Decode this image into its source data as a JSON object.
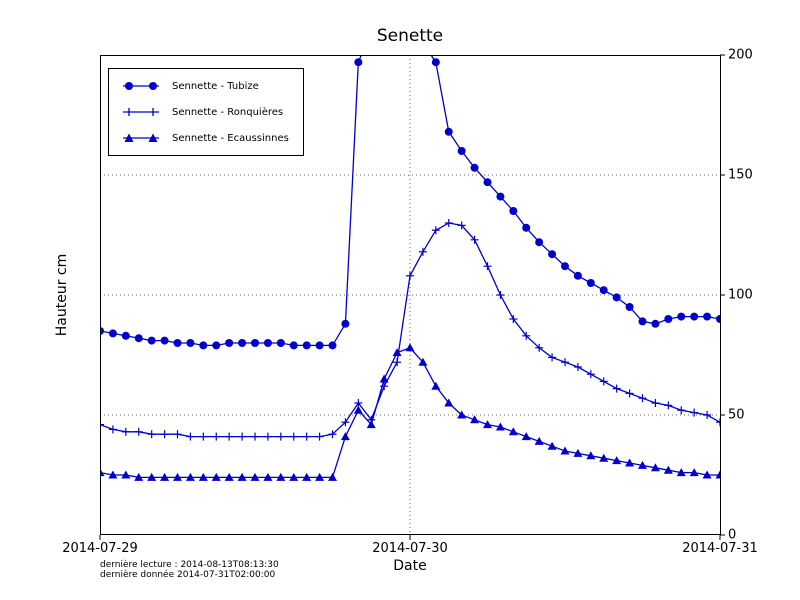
{
  "chart_data": {
    "type": "line",
    "title": "Senette",
    "xlabel": "Date",
    "ylabel": "Hauteur cm",
    "color": "#0000cc",
    "x_unit": "hours since 2014-07-29 00:00",
    "x_range": [
      0,
      48
    ],
    "x_tick_hours": [
      0,
      24,
      48
    ],
    "x_tick_labels": [
      "2014-07-29",
      "2014-07-30",
      "2014-07-31"
    ],
    "y_range": [
      0,
      200
    ],
    "y_ticks": [
      0,
      50,
      100,
      150,
      200
    ],
    "grid_y_values": [
      50,
      100,
      150
    ],
    "grid_x_hours": [
      24
    ],
    "grid_style": "dotted",
    "legend_position": "top-left",
    "series": [
      {
        "name": "Sennette - Tubize",
        "marker": "circle",
        "values": [
          85,
          84,
          83,
          82,
          81,
          81,
          80,
          80,
          79,
          79,
          80,
          80,
          80,
          80,
          80,
          79,
          79,
          79,
          79,
          88,
          197,
          210,
          215,
          215,
          212,
          205,
          197,
          168,
          160,
          153,
          147,
          141,
          135,
          128,
          122,
          117,
          112,
          108,
          105,
          102,
          99,
          95,
          89,
          88,
          90,
          91,
          91,
          91,
          90
        ]
      },
      {
        "name": "Sennette - Ronquières",
        "marker": "plus",
        "values": [
          46,
          44,
          43,
          43,
          42,
          42,
          42,
          41,
          41,
          41,
          41,
          41,
          41,
          41,
          41,
          41,
          41,
          41,
          42,
          47,
          55,
          48,
          62,
          72,
          108,
          118,
          127,
          130,
          129,
          123,
          112,
          100,
          90,
          83,
          78,
          74,
          72,
          70,
          67,
          64,
          61,
          59,
          57,
          55,
          54,
          52,
          51,
          50,
          47
        ]
      },
      {
        "name": "Sennette - Ecaussinnes",
        "marker": "triangle",
        "values": [
          26,
          25,
          25,
          24,
          24,
          24,
          24,
          24,
          24,
          24,
          24,
          24,
          24,
          24,
          24,
          24,
          24,
          24,
          24,
          41,
          52,
          46,
          65,
          76,
          78,
          72,
          62,
          55,
          50,
          48,
          46,
          45,
          43,
          41,
          39,
          37,
          35,
          34,
          33,
          32,
          31,
          30,
          29,
          28,
          27,
          26,
          26,
          25,
          25
        ]
      }
    ]
  },
  "footer": {
    "line1": "dernière lecture : 2014-08-13T08:13:30",
    "line2": "dernière donnée  2014-07-31T02:00:00"
  }
}
